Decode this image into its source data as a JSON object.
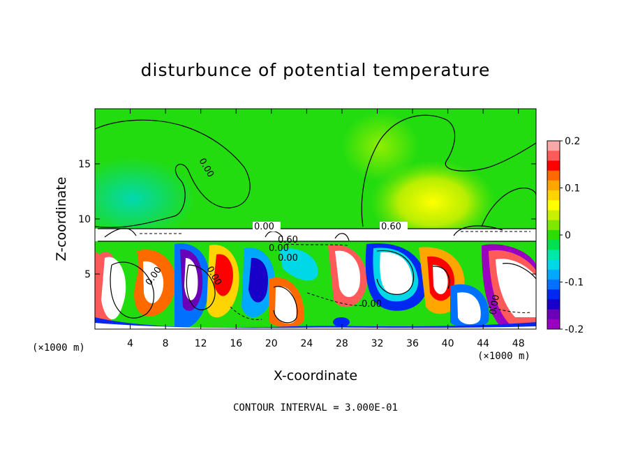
{
  "chart_data": {
    "type": "heatmap",
    "title": "disturbunce of potential temperature",
    "xlabel": "X-coordinate",
    "ylabel": "Z-coordinate",
    "x_unit": "(×1000 m)",
    "x_unit_right": "(×1000 m)",
    "x_ticks": [
      "4",
      "8",
      "12",
      "16",
      "20",
      "24",
      "28",
      "32",
      "36",
      "40",
      "44",
      "48"
    ],
    "y_ticks": [
      "5",
      "10",
      "15"
    ],
    "xlim": [
      0,
      50
    ],
    "ylim": [
      0,
      20
    ],
    "colorbar": {
      "ticks": [
        "0.2",
        "0.1",
        "0",
        "-0.1",
        "-0.2"
      ],
      "range": [
        -0.2,
        0.2
      ],
      "colors": [
        "#f7a8a8",
        "#ff5a5a",
        "#ff0000",
        "#ff6a00",
        "#ffa600",
        "#ffd400",
        "#ffff00",
        "#c8f000",
        "#7ee800",
        "#2ddc00",
        "#00e050",
        "#00e8a8",
        "#00d8e8",
        "#00a8ff",
        "#0070ff",
        "#0028f0",
        "#1800c8",
        "#6a00b8",
        "#9a00c0"
      ]
    },
    "contour_labels": [
      "0.00",
      "0.00",
      "0.60",
      "0.00",
      "0.60",
      "0.00",
      "0.00",
      "0.00",
      "0.00",
      "0.00"
    ],
    "contour_interval": "CONTOUR INTERVAL = 3.000E-01"
  }
}
